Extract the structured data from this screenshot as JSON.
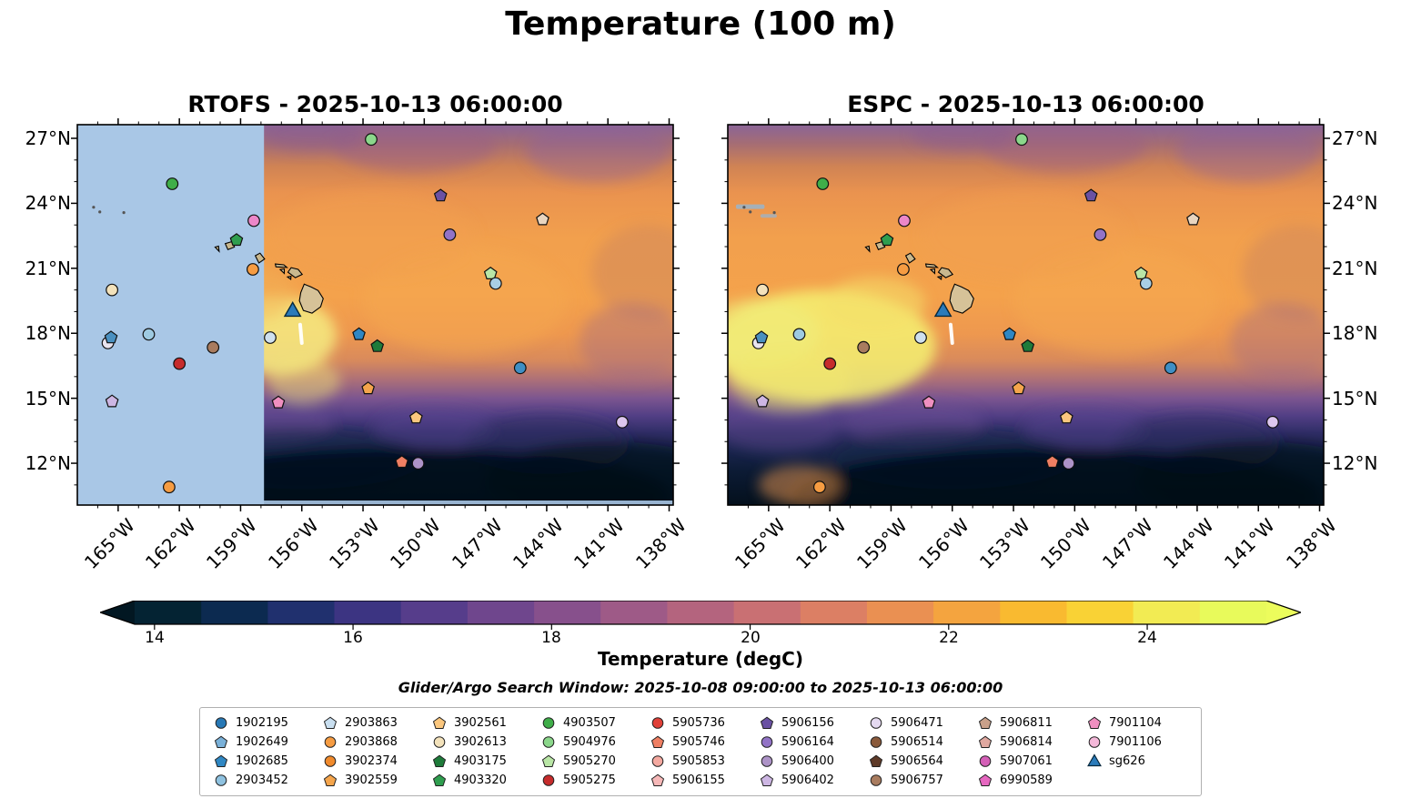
{
  "title": "Temperature (100 m)",
  "panels": [
    {
      "title": "RTOFS - 2025-10-13 06:00:00",
      "model": "RTOFS",
      "masked": true
    },
    {
      "title": "ESPC - 2025-10-13 06:00:00",
      "model": "ESPC",
      "masked": false
    }
  ],
  "axes": {
    "lon_labels": [
      "165°W",
      "162°W",
      "159°W",
      "156°W",
      "153°W",
      "150°W",
      "147°W",
      "144°W",
      "141°W",
      "138°W"
    ],
    "lon_values": [
      165,
      162,
      159,
      156,
      153,
      150,
      147,
      144,
      141,
      138
    ],
    "lat_labels": [
      "27°N",
      "24°N",
      "21°N",
      "18°N",
      "15°N",
      "12°N"
    ],
    "lat_values": [
      27,
      24,
      21,
      18,
      15,
      12
    ]
  },
  "colorbar": {
    "label": "Temperature (degC)",
    "ticks": [
      "14",
      "16",
      "18",
      "20",
      "22",
      "24"
    ],
    "tick_values": [
      14,
      16,
      18,
      20,
      22,
      24
    ],
    "vmin": 13.8,
    "vmax": 25.2,
    "extend": "both",
    "under_color": "#021722",
    "over_color": "#ecfc5c",
    "colors": [
      "#042333",
      "#0c2a50",
      "#20306e",
      "#3c3482",
      "#563d8b",
      "#6f468d",
      "#87508c",
      "#9e5a87",
      "#b4647e",
      "#c97073",
      "#dc7f64",
      "#ea9052",
      "#f4a43f",
      "#f9ba30",
      "#f9d235",
      "#f2eb53",
      "#e8fa5b"
    ]
  },
  "subtitle": "Glider/Argo Search Window: 2025-10-08 09:00:00 to 2025-10-13 06:00:00",
  "legend": {
    "entries": [
      {
        "id": "1902195",
        "shape": "circle",
        "color": "#2778b5"
      },
      {
        "id": "1902649",
        "shape": "pentagon",
        "color": "#7ab1d9"
      },
      {
        "id": "1902685",
        "shape": "pentagon",
        "color": "#2f87c3"
      },
      {
        "id": "2903452",
        "shape": "circle",
        "color": "#8fc2e0"
      },
      {
        "id": "2903863",
        "shape": "pentagon",
        "color": "#c9dff0"
      },
      {
        "id": "2903868",
        "shape": "circle",
        "color": "#f69c42"
      },
      {
        "id": "3902374",
        "shape": "circle",
        "color": "#f08a2c"
      },
      {
        "id": "3902559",
        "shape": "pentagon",
        "color": "#f5a54c"
      },
      {
        "id": "3902561",
        "shape": "pentagon",
        "color": "#fbc77e"
      },
      {
        "id": "3902613",
        "shape": "circle",
        "color": "#f3e2bb"
      },
      {
        "id": "4903175",
        "shape": "pentagon",
        "color": "#1e7b3a"
      },
      {
        "id": "4903320",
        "shape": "pentagon",
        "color": "#2f9e4f"
      },
      {
        "id": "4903507",
        "shape": "circle",
        "color": "#3fae49"
      },
      {
        "id": "5904976",
        "shape": "circle",
        "color": "#8bd78b"
      },
      {
        "id": "5905270",
        "shape": "pentagon",
        "color": "#b9e6a6"
      },
      {
        "id": "5905275",
        "shape": "circle",
        "color": "#c62c2c"
      },
      {
        "id": "5905736",
        "shape": "circle",
        "color": "#e04038"
      },
      {
        "id": "5905746",
        "shape": "pentagon",
        "color": "#ef7f63"
      },
      {
        "id": "5905853",
        "shape": "circle",
        "color": "#f4a9a0"
      },
      {
        "id": "5906155",
        "shape": "pentagon",
        "color": "#f6b8b8"
      },
      {
        "id": "5906156",
        "shape": "pentagon",
        "color": "#6a51a3"
      },
      {
        "id": "5906164",
        "shape": "circle",
        "color": "#9273c6"
      },
      {
        "id": "5906400",
        "shape": "circle",
        "color": "#ad93c7"
      },
      {
        "id": "5906402",
        "shape": "pentagon",
        "color": "#cdb6e3"
      },
      {
        "id": "5906471",
        "shape": "circle",
        "color": "#e4d9f0"
      },
      {
        "id": "5906514",
        "shape": "circle",
        "color": "#8a5a3b"
      },
      {
        "id": "5906564",
        "shape": "pentagon",
        "color": "#5e3a28"
      },
      {
        "id": "5906757",
        "shape": "circle",
        "color": "#a97c5f"
      },
      {
        "id": "5906811",
        "shape": "pentagon",
        "color": "#c9a08a"
      },
      {
        "id": "5906814",
        "shape": "pentagon",
        "color": "#e0a8a0"
      },
      {
        "id": "5907061",
        "shape": "circle",
        "color": "#d45fb7"
      },
      {
        "id": "6990589",
        "shape": "pentagon",
        "color": "#e667c0"
      },
      {
        "id": "7901104",
        "shape": "pentagon",
        "color": "#ef8fc0"
      },
      {
        "id": "7901106",
        "shape": "circle",
        "color": "#f4b8d9"
      },
      {
        "id": "sg626",
        "shape": "triangle",
        "color": "#2b7bba"
      }
    ]
  },
  "chart_data": {
    "type": "heatmap",
    "title": "Temperature (100 m)",
    "variable": "Temperature",
    "units": "degC",
    "depth_m": 100,
    "panels": [
      {
        "model": "RTOFS",
        "valid_time": "2025-10-13 06:00:00",
        "no_data_mask": "light-blue region west of ~158°W"
      },
      {
        "model": "ESPC",
        "valid_time": "2025-10-13 06:00:00"
      }
    ],
    "lon_range_degW": [
      167,
      137.8
    ],
    "lat_range_degN": [
      10.1,
      27.6
    ],
    "colorbar_range_degC": [
      13.8,
      25.2
    ],
    "colorbar_ticks_degC": [
      14,
      16,
      18,
      20,
      22,
      24
    ],
    "search_window": {
      "start": "2025-10-08 09:00:00",
      "end": "2025-10-13 06:00:00"
    },
    "markers": [
      {
        "lon": 162.35,
        "lat": 24.9,
        "shape": "circle",
        "color": "#3fae49"
      },
      {
        "lon": 152.6,
        "lat": 26.95,
        "shape": "circle",
        "color": "#8bd78b"
      },
      {
        "lon": 158.35,
        "lat": 23.2,
        "shape": "circle",
        "color": "#ec87c9"
      },
      {
        "lon": 159.2,
        "lat": 22.3,
        "shape": "pentagon",
        "color": "#2f9e4f"
      },
      {
        "lon": 158.4,
        "lat": 20.95,
        "shape": "circle",
        "color": "#f69c42"
      },
      {
        "lon": 165.3,
        "lat": 20.0,
        "shape": "circle",
        "color": "#f3e2bb"
      },
      {
        "lon": 163.5,
        "lat": 17.95,
        "shape": "circle",
        "color": "#9ecae1"
      },
      {
        "lon": 165.5,
        "lat": 17.55,
        "shape": "circle",
        "color": "#e9e4ef"
      },
      {
        "lon": 165.35,
        "lat": 17.8,
        "shape": "pentagon",
        "color": "#4a90c0"
      },
      {
        "lon": 153.2,
        "lat": 17.95,
        "shape": "pentagon",
        "color": "#2f87c3"
      },
      {
        "lon": 157.55,
        "lat": 17.8,
        "shape": "circle",
        "color": "#cfe0ee"
      },
      {
        "lon": 152.3,
        "lat": 17.4,
        "shape": "pentagon",
        "color": "#1e7b3a"
      },
      {
        "lon": 162.0,
        "lat": 16.6,
        "shape": "circle",
        "color": "#c62c2c"
      },
      {
        "lon": 160.35,
        "lat": 17.35,
        "shape": "circle",
        "color": "#a97c5f"
      },
      {
        "lon": 149.2,
        "lat": 24.35,
        "shape": "pentagon",
        "color": "#6a51a3"
      },
      {
        "lon": 148.75,
        "lat": 22.55,
        "shape": "circle",
        "color": "#9273c6"
      },
      {
        "lon": 144.2,
        "lat": 23.25,
        "shape": "pentagon",
        "color": "#e8d5c0"
      },
      {
        "lon": 146.75,
        "lat": 20.75,
        "shape": "pentagon",
        "color": "#b9e6a6"
      },
      {
        "lon": 146.5,
        "lat": 20.3,
        "shape": "circle",
        "color": "#a9cfe5"
      },
      {
        "lon": 145.3,
        "lat": 16.4,
        "shape": "circle",
        "color": "#3f8fc5"
      },
      {
        "lon": 152.75,
        "lat": 15.45,
        "shape": "pentagon",
        "color": "#f5a54c"
      },
      {
        "lon": 157.15,
        "lat": 14.8,
        "shape": "pentagon",
        "color": "#ef8fc0"
      },
      {
        "lon": 165.3,
        "lat": 14.85,
        "shape": "pentagon",
        "color": "#cdb6e3"
      },
      {
        "lon": 150.4,
        "lat": 14.1,
        "shape": "pentagon",
        "color": "#fbc77e"
      },
      {
        "lon": 140.3,
        "lat": 13.9,
        "shape": "circle",
        "color": "#ddc7ee"
      },
      {
        "lon": 151.1,
        "lat": 12.05,
        "shape": "pentagon",
        "color": "#ef7f63"
      },
      {
        "lon": 150.3,
        "lat": 12.0,
        "shape": "circle",
        "color": "#ad93c7"
      },
      {
        "lon": 162.5,
        "lat": 10.9,
        "shape": "circle",
        "color": "#f69c42"
      }
    ],
    "glider": {
      "id": "sg626",
      "lon": 156.45,
      "lat": 19.0,
      "shape": "triangle",
      "color": "#2b7bba"
    }
  }
}
